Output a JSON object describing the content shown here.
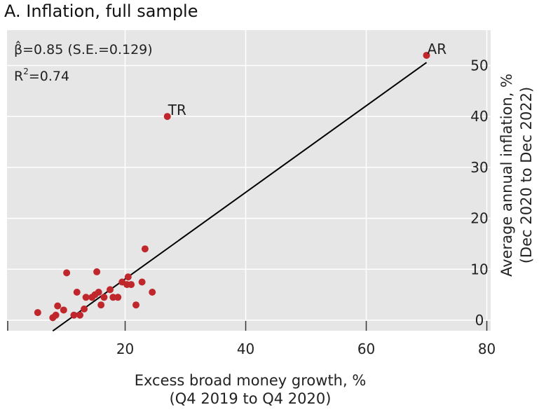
{
  "title": "A. Inflation, full sample",
  "colors": {
    "panel_bg": "#e6e6e6",
    "point": "#c0272d",
    "line": "#000000",
    "grid": "#ffffff"
  },
  "annotations": {
    "beta": "β̂=0.85 (S.E.=0.129)",
    "r2_prefix": "R",
    "r2_sup": "2",
    "r2_value": "=0.74"
  },
  "chart_data": {
    "type": "scatter",
    "title": "A. Inflation, full sample",
    "xlabel": "Excess broad money growth, %",
    "xlabel_sub": "(Q4 2019 to Q4 2020)",
    "ylabel": "Average annual inflation, %",
    "ylabel_sub": "(Dec 2020 to Dec 2022)",
    "xlim": [
      0,
      80
    ],
    "ylim": [
      -2,
      57
    ],
    "xticks": [
      20,
      40,
      60,
      80
    ],
    "yticks": [
      0,
      10,
      20,
      30,
      40,
      50
    ],
    "y_axis_side": "right",
    "grid": true,
    "fit_line": {
      "x_start": 8,
      "y_start": -2.1,
      "x_end": 70,
      "y_end": 50.6,
      "slope": 0.85
    },
    "labeled_points": [
      {
        "label": "AR",
        "x": 70,
        "y": 52
      },
      {
        "label": "TR",
        "x": 27,
        "y": 40
      }
    ],
    "points": [
      {
        "x": 5.5,
        "y": 1.5
      },
      {
        "x": 8,
        "y": 0.5
      },
      {
        "x": 8.5,
        "y": 1
      },
      {
        "x": 8.8,
        "y": 2.8
      },
      {
        "x": 9.8,
        "y": 2
      },
      {
        "x": 10.3,
        "y": 9.3
      },
      {
        "x": 11.5,
        "y": 1
      },
      {
        "x": 12,
        "y": 5.5
      },
      {
        "x": 12.5,
        "y": 1
      },
      {
        "x": 13.2,
        "y": 2.2
      },
      {
        "x": 13.5,
        "y": 4.5
      },
      {
        "x": 14.5,
        "y": 4.5
      },
      {
        "x": 15,
        "y": 5
      },
      {
        "x": 15.3,
        "y": 9.5
      },
      {
        "x": 15.6,
        "y": 5.5
      },
      {
        "x": 16,
        "y": 3
      },
      {
        "x": 16.5,
        "y": 4.5
      },
      {
        "x": 17.5,
        "y": 6
      },
      {
        "x": 18,
        "y": 4.5
      },
      {
        "x": 18.8,
        "y": 4.5
      },
      {
        "x": 19.5,
        "y": 7.5
      },
      {
        "x": 20.3,
        "y": 7
      },
      {
        "x": 20.5,
        "y": 8.5
      },
      {
        "x": 21,
        "y": 7
      },
      {
        "x": 21.8,
        "y": 3
      },
      {
        "x": 22.8,
        "y": 7.5
      },
      {
        "x": 23.3,
        "y": 14
      },
      {
        "x": 24.5,
        "y": 5.5
      }
    ]
  }
}
